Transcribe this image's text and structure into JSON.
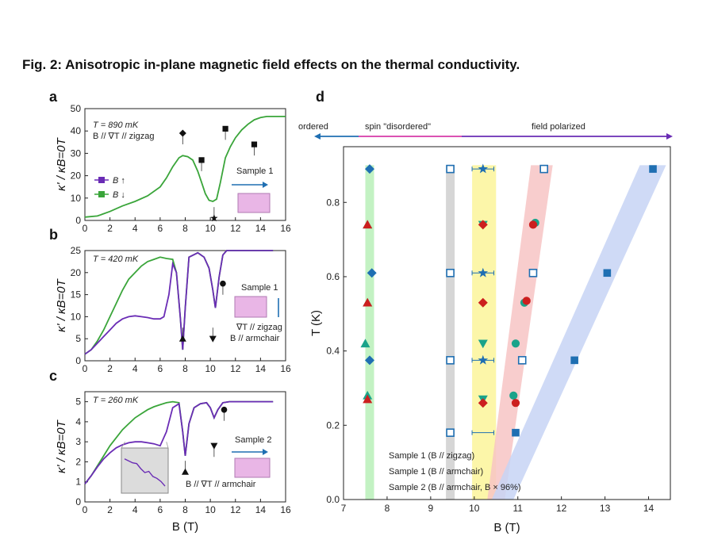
{
  "figure_title": "Fig. 2: Anisotropic in-plane magnetic field effects on the thermal conductivity.",
  "colors": {
    "green": "#3aa53a",
    "purple": "#6a2cb5",
    "blue": "#1f6fb2",
    "teal": "#1aa38a",
    "red": "#cc1f1f",
    "magenta": "#d63aa8",
    "band_green": "#b8f0b8",
    "band_gray": "#cfcfcf",
    "band_yellow": "#fbf59a",
    "band_red": "#f7c4c4",
    "band_blue": "#c7d4f5"
  },
  "chart_data": [
    {
      "panel": "a",
      "type": "line",
      "xlabel": "",
      "ylabel": "κ' / κB=0T",
      "xlim": [
        0,
        16
      ],
      "ylim": [
        0,
        50
      ],
      "xticks": [
        0,
        2,
        4,
        6,
        8,
        10,
        12,
        14,
        16
      ],
      "yticks": [
        0,
        10,
        20,
        30,
        40,
        50
      ],
      "annotations": [
        "T = 890 mK",
        "B // ∇T // zigzag",
        "Sample 1"
      ],
      "legend": [
        "B ↑",
        "B ↓"
      ],
      "series": [
        {
          "name": "B ↓",
          "color": "green",
          "x": [
            0,
            1,
            2,
            3,
            4,
            5,
            6,
            6.5,
            7,
            7.5,
            7.8,
            8.2,
            8.6,
            9,
            9.3,
            9.6,
            9.9,
            10.2,
            10.5,
            10.8,
            11.2,
            11.6,
            12,
            12.5,
            13,
            13.5,
            14,
            14.5,
            15,
            15.5,
            16
          ],
          "y": [
            1.5,
            2,
            4,
            6.5,
            8.5,
            11,
            15,
            19,
            24,
            28,
            29,
            28.5,
            27,
            22,
            17,
            12,
            9,
            8.5,
            9.5,
            17,
            28,
            33,
            37,
            40.5,
            43,
            45,
            46,
            46.5,
            46.5,
            46.5,
            46.5
          ]
        }
      ],
      "markers": [
        {
          "shape": "diamond",
          "x": 7.8,
          "y": 39
        },
        {
          "shape": "square",
          "x": 9.3,
          "y": 27
        },
        {
          "shape": "star",
          "x": 10.3,
          "y": 1
        },
        {
          "shape": "square",
          "x": 11.2,
          "y": 41
        },
        {
          "shape": "square",
          "x": 13.5,
          "y": 34
        }
      ]
    },
    {
      "panel": "b",
      "type": "line",
      "xlabel": "",
      "ylabel": "κ' / κB=0T",
      "xlim": [
        0,
        16
      ],
      "ylim": [
        0,
        25
      ],
      "xticks": [
        0,
        2,
        4,
        6,
        8,
        10,
        12,
        14,
        16
      ],
      "yticks": [
        0,
        5,
        10,
        15,
        20,
        25
      ],
      "annotations": [
        "T = 420 mK",
        "Sample 1",
        "∇T // zigzag",
        "B // armchair"
      ],
      "series": [
        {
          "name": "B ↓",
          "color": "green",
          "x": [
            0,
            0.5,
            1,
            1.5,
            2,
            2.5,
            3,
            3.5,
            4,
            4.5,
            5,
            5.5,
            6,
            6.5,
            7,
            7.3,
            7.6,
            7.8,
            8,
            8.3,
            9,
            9.5,
            9.9,
            10.2,
            10.4,
            10.7,
            11,
            11.3,
            12,
            13,
            14,
            15
          ],
          "y": [
            1.5,
            2.5,
            4.5,
            7,
            10,
            13,
            16,
            18.5,
            20,
            21.5,
            22.5,
            23,
            23.5,
            23.2,
            23,
            20,
            10,
            2.5,
            12,
            23.5,
            24.5,
            23.5,
            21,
            16,
            12,
            19,
            24,
            25,
            25,
            25,
            25,
            25
          ]
        },
        {
          "name": "B ↑",
          "color": "purple",
          "x": [
            0,
            0.5,
            1,
            1.5,
            2,
            2.5,
            3,
            3.5,
            4,
            4.5,
            5,
            5.5,
            6,
            6.3,
            6.7,
            7,
            7.3,
            7.6,
            7.8,
            8,
            8.3,
            9,
            9.5,
            9.9,
            10.2,
            10.4,
            10.7,
            11,
            11.3,
            12,
            13,
            14,
            15
          ],
          "y": [
            1.5,
            2.5,
            4,
            5.5,
            7,
            8.5,
            9.5,
            10,
            10.2,
            10,
            9.8,
            9.5,
            9.5,
            10,
            15,
            22,
            20,
            10,
            2.5,
            12,
            23.5,
            24.5,
            23.5,
            21,
            16,
            12,
            19,
            24,
            25,
            25,
            25,
            25,
            25
          ]
        }
      ],
      "markers": [
        {
          "shape": "triangle-up",
          "x": 7.8,
          "y": 5
        },
        {
          "shape": "triangle-down",
          "x": 10.2,
          "y": 5
        },
        {
          "shape": "circle",
          "x": 11,
          "y": 17.5
        }
      ]
    },
    {
      "panel": "c",
      "type": "line",
      "xlabel": "B (T)",
      "ylabel": "κ' / κB=0T",
      "xlim": [
        0,
        16
      ],
      "ylim": [
        0,
        5.5
      ],
      "xticks": [
        0,
        2,
        4,
        6,
        8,
        10,
        12,
        14,
        16
      ],
      "yticks": [
        0,
        1,
        2,
        3,
        4,
        5
      ],
      "annotations": [
        "T = 260 mK",
        "Sample 2",
        "B // ∇T // armchair"
      ],
      "series": [
        {
          "name": "B ↓",
          "color": "green",
          "x": [
            0,
            0.5,
            1,
            1.5,
            2,
            2.5,
            3,
            3.5,
            4,
            4.5,
            5,
            5.5,
            6,
            6.5,
            7,
            7.5,
            7.8,
            8,
            8.3,
            8.7,
            9.2,
            9.7,
            10,
            10.3,
            10.6,
            11,
            11.5,
            12,
            13,
            14,
            15
          ],
          "y": [
            0.9,
            1.3,
            1.8,
            2.3,
            2.8,
            3.2,
            3.6,
            3.9,
            4.2,
            4.4,
            4.6,
            4.75,
            4.85,
            4.95,
            5,
            4.95,
            3.5,
            2.3,
            3.9,
            4.7,
            4.9,
            4.95,
            4.7,
            4.2,
            4.6,
            4.95,
            5,
            5,
            5,
            5,
            5
          ]
        },
        {
          "name": "B ↑",
          "color": "purple",
          "x": [
            0,
            0.5,
            1,
            1.5,
            2,
            2.5,
            3,
            3.5,
            4,
            4.5,
            5,
            5.5,
            6,
            6.5,
            7,
            7.5,
            7.8,
            8,
            8.3,
            8.7,
            9.2,
            9.7,
            10,
            10.3,
            10.6,
            11,
            11.5,
            12,
            13,
            14,
            15
          ],
          "y": [
            0.9,
            1.3,
            1.75,
            2.15,
            2.45,
            2.7,
            2.85,
            2.95,
            3,
            3,
            2.95,
            2.9,
            2.8,
            3.5,
            4.7,
            4.9,
            3.5,
            2.3,
            3.9,
            4.7,
            4.9,
            4.95,
            4.7,
            4.2,
            4.6,
            4.95,
            5,
            5,
            5,
            5,
            5
          ]
        }
      ],
      "inset_series": {
        "x": [
          0,
          1,
          2,
          3,
          4,
          5,
          6,
          7,
          8,
          9,
          10
        ],
        "y": [
          0.8,
          0.75,
          0.7,
          0.68,
          0.55,
          0.45,
          0.48,
          0.35,
          0.3,
          0.22,
          0.1
        ]
      },
      "markers": [
        {
          "shape": "triangle-up",
          "x": 8,
          "y": 1.5
        },
        {
          "shape": "triangle-down",
          "x": 10.3,
          "y": 2.8
        },
        {
          "shape": "circle",
          "x": 11.1,
          "y": 4.6
        }
      ]
    },
    {
      "panel": "d",
      "type": "scatter",
      "xlabel": "B (T)",
      "ylabel": "T (K)",
      "xlim": [
        7,
        14.5
      ],
      "ylim": [
        0,
        0.95
      ],
      "xticks": [
        7,
        8,
        9,
        10,
        11,
        12,
        13,
        14
      ],
      "ytick_values": [
        0,
        0.2,
        0.4,
        0.6,
        0.8
      ],
      "ytick_labels": [
        "0.0",
        "0.2",
        "0.4",
        "0.6",
        "0.8"
      ],
      "region_labels": [
        "ordered",
        "spin \"disordered\"",
        "field polarized"
      ],
      "legend": [
        "Sample 1 (B // zigzag)",
        "Sample 1 (B // armchair)",
        "Sample 2 (B // armchair, B × 96%)"
      ],
      "bands": [
        {
          "color": "band_green",
          "x": [
            [
              7.5,
              7.5
            ],
            [
              7.7,
              7.7
            ]
          ],
          "y": [
            0,
            0.9
          ]
        },
        {
          "color": "band_gray",
          "x": [
            [
              9.35,
              9.35
            ],
            [
              9.55,
              9.55
            ]
          ],
          "y": [
            0,
            0.9
          ]
        },
        {
          "color": "band_yellow",
          "x": [
            [
              9.95,
              9.95
            ],
            [
              10.5,
              10.5
            ]
          ],
          "y": [
            0,
            0.9
          ]
        },
        {
          "color": "band_red",
          "x": [
            [
              10.3,
              11.3
            ],
            [
              10.7,
              11.8
            ]
          ],
          "y": [
            0,
            0.9
          ]
        },
        {
          "color": "band_blue",
          "x": [
            [
              10.4,
              13.8
            ],
            [
              10.9,
              14.4
            ]
          ],
          "y": [
            0,
            0.9
          ]
        }
      ],
      "series": [
        {
          "name": "Sample 1 zigzag (diamond)",
          "color": "blue",
          "shape": "diamond",
          "x": [
            7.6,
            7.65,
            7.6
          ],
          "y": [
            0.89,
            0.61,
            0.375
          ]
        },
        {
          "name": "Sample 1 zigzag (open square)",
          "color": "blue",
          "shape": "open-square",
          "x": [
            9.45,
            9.45,
            9.45,
            9.45,
            11.6,
            11.35,
            11.1
          ],
          "y": [
            0.89,
            0.61,
            0.375,
            0.18,
            0.89,
            0.61,
            0.375
          ]
        },
        {
          "name": "Sample 1 zigzag (star)",
          "color": "blue",
          "shape": "star",
          "x": [
            10.2,
            10.2,
            10.2
          ],
          "y": [
            0.89,
            0.61,
            0.375
          ]
        },
        {
          "name": "Sample 1 zigzag (square)",
          "color": "blue",
          "shape": "square",
          "x": [
            14.1,
            13.05,
            12.3,
            10.95
          ],
          "y": [
            0.89,
            0.61,
            0.375,
            0.18
          ]
        },
        {
          "name": "Sample 1 armchair (triangle-up)",
          "color": "teal",
          "shape": "triangle-up",
          "x": [
            7.55,
            7.55,
            7.5,
            7.55
          ],
          "y": [
            0.74,
            0.53,
            0.42,
            0.28
          ]
        },
        {
          "name": "Sample 1 armchair (triangle-down)",
          "color": "teal",
          "shape": "triangle-down",
          "x": [
            10.2,
            10.2,
            10.2
          ],
          "y": [
            0.74,
            0.42,
            0.27
          ]
        },
        {
          "name": "Sample 1 armchair (circle)",
          "color": "teal",
          "shape": "circle",
          "x": [
            11.4,
            11.15,
            10.95,
            10.9
          ],
          "y": [
            0.745,
            0.53,
            0.42,
            0.28
          ]
        },
        {
          "name": "Sample 2 (triangle-up)",
          "color": "red",
          "shape": "triangle-up",
          "x": [
            7.55,
            7.55,
            7.55
          ],
          "y": [
            0.74,
            0.53,
            0.27
          ]
        },
        {
          "name": "Sample 2 (diamond)",
          "color": "red",
          "shape": "diamond",
          "x": [
            10.2,
            10.2,
            10.2
          ],
          "y": [
            0.74,
            0.53,
            0.26
          ]
        },
        {
          "name": "Sample 2 (circle)",
          "color": "red",
          "shape": "circle",
          "x": [
            11.35,
            11.2,
            10.95
          ],
          "y": [
            0.74,
            0.535,
            0.26
          ]
        }
      ],
      "error_bars": [
        {
          "x": 10.2,
          "y": 0.89,
          "xerr": 0.25
        },
        {
          "x": 10.2,
          "y": 0.61,
          "xerr": 0.25
        },
        {
          "x": 10.2,
          "y": 0.375,
          "xerr": 0.25
        },
        {
          "x": 10.2,
          "y": 0.18,
          "xerr": 0.25
        }
      ]
    }
  ]
}
